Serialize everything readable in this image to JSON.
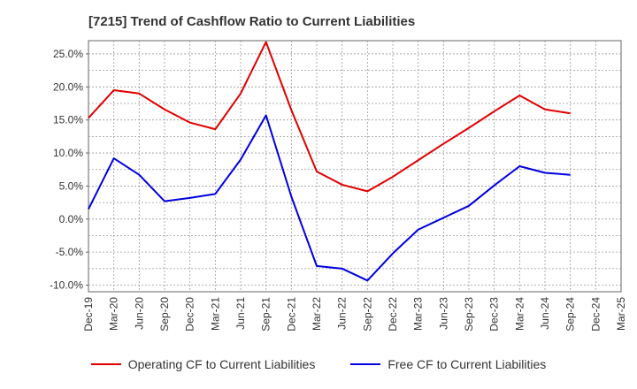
{
  "chart_data": {
    "type": "line",
    "title": "[7215]  Trend of Cashflow Ratio to Current Liabilities",
    "categories": [
      "Dec-19",
      "Mar-20",
      "Jun-20",
      "Sep-20",
      "Dec-20",
      "Mar-21",
      "Jun-21",
      "Sep-21",
      "Dec-21",
      "Mar-22",
      "Jun-22",
      "Sep-22",
      "Dec-22",
      "Mar-23",
      "Jun-23",
      "Sep-23",
      "Dec-23",
      "Mar-24",
      "Jun-24",
      "Sep-24",
      "Dec-24",
      "Mar-25"
    ],
    "ylim": [
      -11,
      27
    ],
    "yticks": [
      25,
      20,
      15,
      10,
      5,
      0,
      -5,
      -10
    ],
    "ytick_labels": [
      "25.0%",
      "20.0%",
      "15.0%",
      "10.0%",
      "5.0%",
      "0.0%",
      "-5.0%",
      "-10.0%"
    ],
    "grid": true,
    "legend_position": "bottom",
    "series": [
      {
        "name": "Operating CF to Current Liabilities",
        "color": "#e00000",
        "values": [
          15.3,
          19.5,
          19.0,
          16.6,
          14.6,
          13.6,
          19.0,
          26.8,
          16.5,
          7.2,
          5.2,
          4.2,
          6.4,
          8.9,
          11.4,
          13.8,
          16.3,
          18.7,
          16.6,
          16.0,
          null,
          null
        ]
      },
      {
        "name": "Free CF to Current Liabilities",
        "color": "#0000e0",
        "values": [
          1.5,
          9.2,
          6.7,
          2.7,
          3.2,
          3.8,
          9.0,
          15.7,
          3.4,
          -7.1,
          -7.5,
          -9.3,
          -5.2,
          -1.6,
          0.2,
          2.0,
          5.1,
          8.0,
          7.0,
          6.7,
          null,
          null
        ]
      }
    ]
  }
}
